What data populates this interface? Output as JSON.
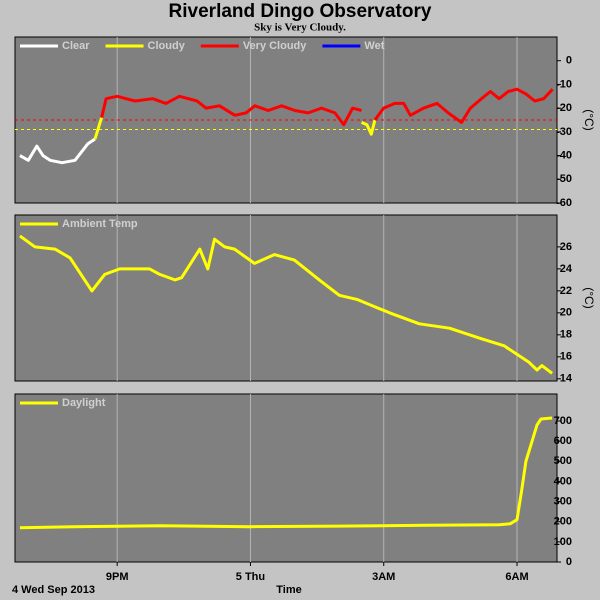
{
  "header": {
    "title": "Riverland Dingo Observatory",
    "subtitle": "Sky is Very Cloudy."
  },
  "footer": {
    "date": "4 Wed Sep 2013",
    "x_label": "Time"
  },
  "chart_data": [
    {
      "type": "line",
      "y_label": "(°C)",
      "xlim": [
        18.7,
        30.9
      ],
      "xticks": [
        {
          "value": 21,
          "label": "9PM"
        },
        {
          "value": 24,
          "label": "5 Thu"
        },
        {
          "value": 27,
          "label": "3AM"
        },
        {
          "value": 30,
          "label": "6AM"
        }
      ],
      "ylim": [
        -60,
        10
      ],
      "yticks": [
        0,
        -10,
        -20,
        -30,
        -40,
        -50,
        -60
      ],
      "grid": true,
      "reference_lines": [
        {
          "value": -25,
          "color": "#ff0000"
        },
        {
          "value": -29,
          "color": "#ffff00"
        }
      ],
      "series": [
        {
          "name": "Clear",
          "color": "#ffffff",
          "x": [
            18.81,
            19.0,
            19.19,
            19.33,
            19.49,
            19.76,
            20.05,
            20.34,
            20.5
          ],
          "values": [
            -40,
            -42,
            -36,
            -40,
            -42,
            -43,
            -42,
            -35,
            -33
          ]
        },
        {
          "name": "Cloudy",
          "color": "#ffff00",
          "x": [
            20.5,
            20.65,
            null,
            26.5,
            26.62,
            26.72,
            26.8
          ],
          "values": [
            -33,
            -24,
            null,
            -26,
            -27,
            -31,
            -25
          ]
        },
        {
          "name": "Very Cloudy",
          "color": "#ff0000",
          "x": [
            20.65,
            20.75,
            21.0,
            21.4,
            21.8,
            22.1,
            22.4,
            22.8,
            23.0,
            23.3,
            23.65,
            23.9,
            24.1,
            24.4,
            24.7,
            25.0,
            25.3,
            25.6,
            25.9,
            26.1,
            26.3,
            26.5,
            null,
            26.8,
            27.0,
            27.25,
            27.45,
            27.6,
            27.9,
            28.2,
            28.45,
            28.75,
            28.95,
            29.2,
            29.4,
            29.6,
            29.8,
            30.0,
            30.2,
            30.4,
            30.6,
            30.8
          ],
          "values": [
            -24,
            -16,
            -15,
            -17,
            -16,
            -18,
            -15,
            -17,
            -20,
            -19,
            -23,
            -22,
            -19,
            -21,
            -19,
            -21,
            -22,
            -20,
            -22,
            -27,
            -20,
            -21,
            null,
            -25,
            -20,
            -18,
            -18,
            -23,
            -20,
            -18,
            -22,
            -26,
            -20,
            -16,
            -13,
            -16,
            -13,
            -12,
            -14,
            -17,
            -16,
            -12
          ]
        },
        {
          "name": "Wet",
          "color": "#0000ff",
          "x": [],
          "values": []
        }
      ]
    },
    {
      "type": "line",
      "y_label": "(°C)",
      "xlim": [
        18.7,
        30.9
      ],
      "xticks": [
        {
          "value": 21,
          "label": "9PM"
        },
        {
          "value": 24,
          "label": "5 Thu"
        },
        {
          "value": 27,
          "label": "3AM"
        },
        {
          "value": 30,
          "label": "6AM"
        }
      ],
      "ylim": [
        13.8,
        28.9
      ],
      "yticks": [
        14,
        16,
        18,
        20,
        22,
        24,
        26
      ],
      "grid": true,
      "series": [
        {
          "name": "Ambient Temp",
          "color": "#ffff00",
          "x": [
            18.81,
            19.15,
            19.6,
            19.94,
            20.43,
            20.72,
            21.06,
            21.73,
            21.96,
            22.3,
            22.45,
            22.86,
            23.04,
            23.19,
            23.42,
            23.64,
            24.09,
            24.54,
            24.99,
            25.55,
            26.0,
            26.41,
            27.13,
            27.8,
            28.48,
            29.15,
            29.71,
            30.27,
            30.45,
            30.56,
            30.79
          ],
          "values": [
            27,
            26,
            25.8,
            25,
            22,
            23.5,
            24,
            24,
            23.5,
            23,
            23.2,
            25.8,
            24,
            26.7,
            26,
            25.8,
            24.5,
            25.3,
            24.8,
            23,
            21.6,
            21.2,
            20,
            19,
            18.6,
            17.7,
            17,
            15.5,
            14.8,
            15.2,
            14.5
          ]
        }
      ]
    },
    {
      "type": "line",
      "xlim": [
        18.7,
        30.9
      ],
      "xticks": [
        {
          "value": 21,
          "label": "9PM"
        },
        {
          "value": 24,
          "label": "5 Thu"
        },
        {
          "value": 27,
          "label": "3AM"
        },
        {
          "value": 30,
          "label": "6AM"
        }
      ],
      "ylim": [
        0,
        834
      ],
      "yticks": [
        0,
        100,
        200,
        300,
        400,
        500,
        600,
        700
      ],
      "grid": true,
      "series": [
        {
          "name": "Daylight",
          "color": "#ffff00",
          "x": [
            18.81,
            20.0,
            22.0,
            24.0,
            26.0,
            28.0,
            29.6,
            29.85,
            30.0,
            30.1,
            30.2,
            30.34,
            30.45,
            30.54,
            30.79
          ],
          "values": [
            170,
            175,
            180,
            175,
            178,
            182,
            185,
            190,
            210,
            350,
            500,
            600,
            680,
            710,
            715
          ]
        }
      ]
    }
  ]
}
